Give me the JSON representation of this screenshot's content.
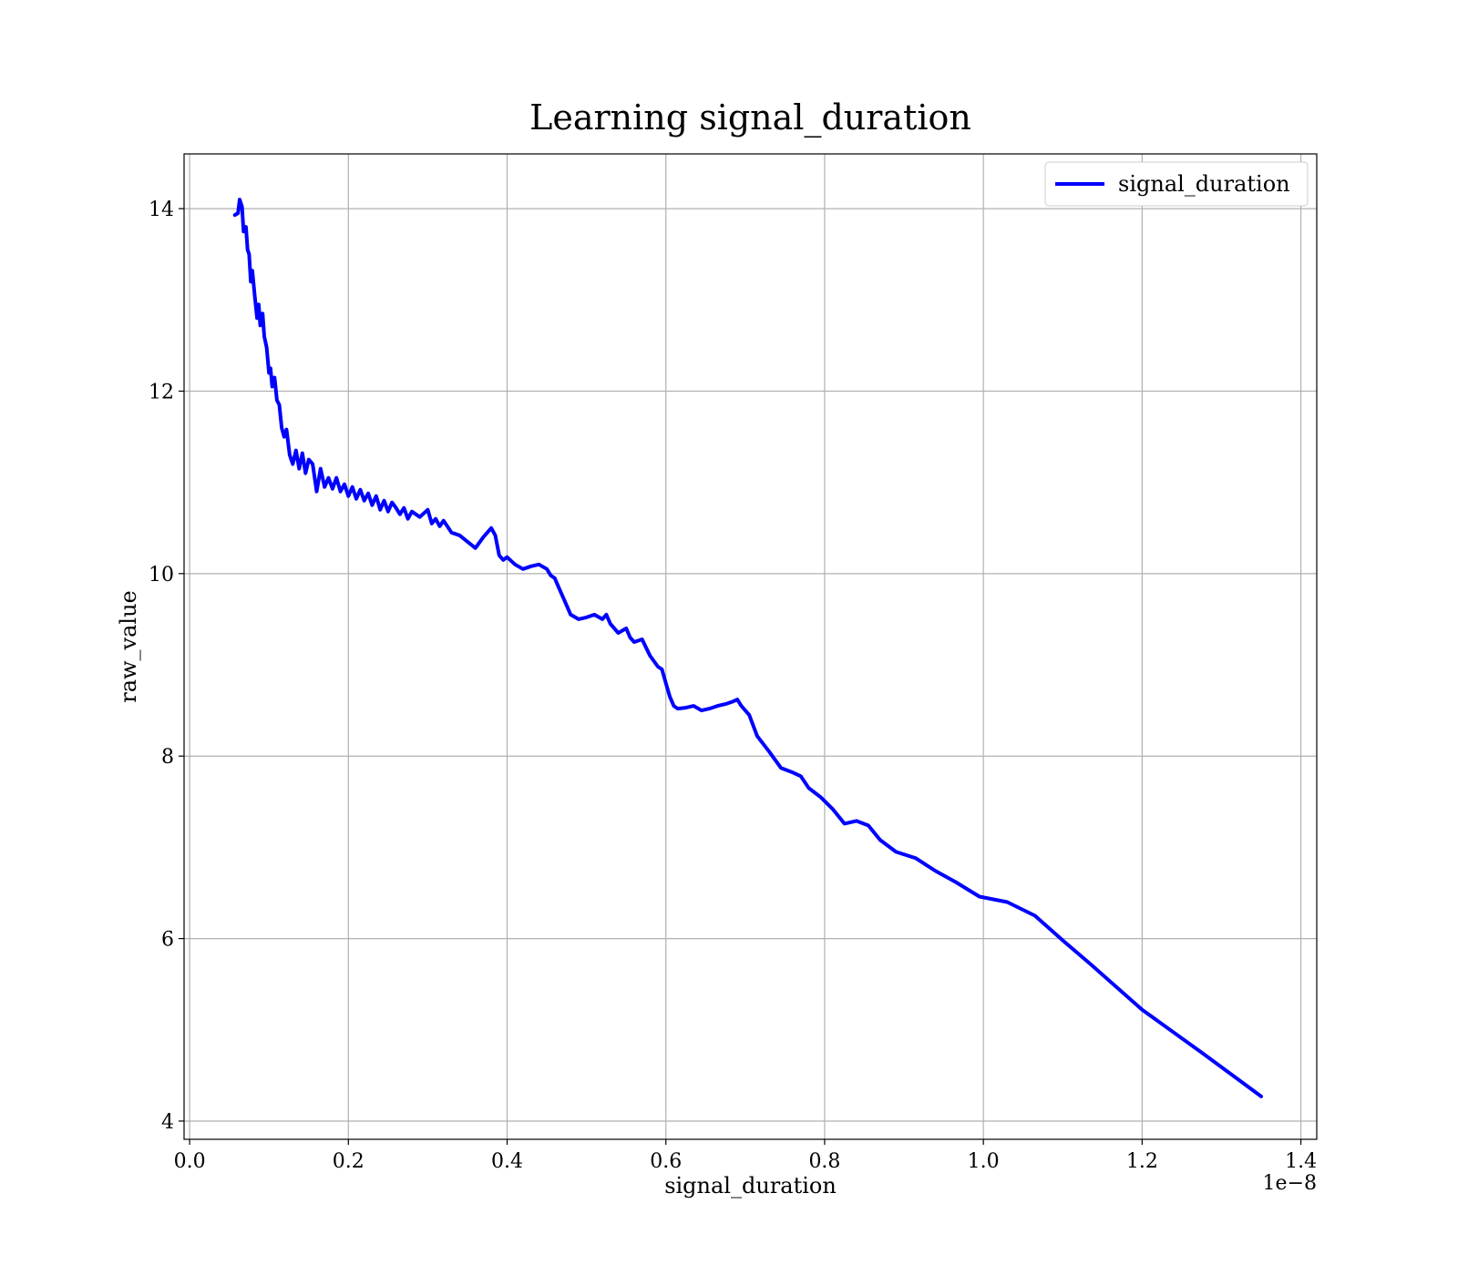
{
  "chart_data": {
    "type": "line",
    "title": "Learning signal_duration",
    "xlabel": "signal_duration",
    "ylabel": "raw_value",
    "x_offset_label": "1e−8",
    "xlim": [
      -0.007,
      1.42
    ],
    "ylim": [
      3.8,
      14.6
    ],
    "x_ticks": [
      0.0,
      0.2,
      0.4,
      0.6,
      0.8,
      1.0,
      1.2,
      1.4
    ],
    "x_tick_labels": [
      "0.0",
      "0.2",
      "0.4",
      "0.6",
      "0.8",
      "1.0",
      "1.2",
      "1.4"
    ],
    "y_ticks": [
      4,
      6,
      8,
      10,
      12,
      14
    ],
    "y_tick_labels": [
      "4",
      "6",
      "8",
      "10",
      "12",
      "14"
    ],
    "grid": true,
    "legend": {
      "position": "top-right",
      "entries": [
        "signal_duration"
      ]
    },
    "series": [
      {
        "name": "signal_duration",
        "color": "#0000ff",
        "points": [
          [
            0.057,
            13.93
          ],
          [
            0.061,
            13.95
          ],
          [
            0.063,
            14.1
          ],
          [
            0.066,
            14.02
          ],
          [
            0.068,
            13.75
          ],
          [
            0.071,
            13.8
          ],
          [
            0.073,
            13.55
          ],
          [
            0.075,
            13.5
          ],
          [
            0.077,
            13.2
          ],
          [
            0.079,
            13.32
          ],
          [
            0.082,
            13.05
          ],
          [
            0.085,
            12.8
          ],
          [
            0.087,
            12.95
          ],
          [
            0.089,
            12.72
          ],
          [
            0.092,
            12.85
          ],
          [
            0.094,
            12.6
          ],
          [
            0.097,
            12.48
          ],
          [
            0.1,
            12.2
          ],
          [
            0.102,
            12.25
          ],
          [
            0.104,
            12.05
          ],
          [
            0.107,
            12.15
          ],
          [
            0.11,
            11.9
          ],
          [
            0.113,
            11.85
          ],
          [
            0.116,
            11.6
          ],
          [
            0.119,
            11.5
          ],
          [
            0.122,
            11.58
          ],
          [
            0.126,
            11.3
          ],
          [
            0.13,
            11.2
          ],
          [
            0.134,
            11.35
          ],
          [
            0.138,
            11.15
          ],
          [
            0.142,
            11.32
          ],
          [
            0.146,
            11.1
          ],
          [
            0.15,
            11.25
          ],
          [
            0.155,
            11.2
          ],
          [
            0.16,
            10.9
          ],
          [
            0.165,
            11.15
          ],
          [
            0.17,
            10.95
          ],
          [
            0.175,
            11.05
          ],
          [
            0.18,
            10.93
          ],
          [
            0.185,
            11.05
          ],
          [
            0.19,
            10.9
          ],
          [
            0.195,
            10.98
          ],
          [
            0.2,
            10.85
          ],
          [
            0.205,
            10.95
          ],
          [
            0.21,
            10.82
          ],
          [
            0.215,
            10.92
          ],
          [
            0.22,
            10.8
          ],
          [
            0.225,
            10.88
          ],
          [
            0.23,
            10.75
          ],
          [
            0.235,
            10.85
          ],
          [
            0.24,
            10.7
          ],
          [
            0.245,
            10.8
          ],
          [
            0.25,
            10.68
          ],
          [
            0.255,
            10.78
          ],
          [
            0.26,
            10.72
          ],
          [
            0.265,
            10.65
          ],
          [
            0.27,
            10.72
          ],
          [
            0.275,
            10.6
          ],
          [
            0.28,
            10.68
          ],
          [
            0.29,
            10.62
          ],
          [
            0.3,
            10.7
          ],
          [
            0.305,
            10.55
          ],
          [
            0.31,
            10.6
          ],
          [
            0.315,
            10.52
          ],
          [
            0.32,
            10.58
          ],
          [
            0.33,
            10.45
          ],
          [
            0.34,
            10.42
          ],
          [
            0.35,
            10.35
          ],
          [
            0.36,
            10.28
          ],
          [
            0.37,
            10.4
          ],
          [
            0.38,
            10.5
          ],
          [
            0.385,
            10.42
          ],
          [
            0.39,
            10.2
          ],
          [
            0.395,
            10.15
          ],
          [
            0.4,
            10.18
          ],
          [
            0.41,
            10.1
          ],
          [
            0.42,
            10.05
          ],
          [
            0.43,
            10.08
          ],
          [
            0.44,
            10.1
          ],
          [
            0.45,
            10.05
          ],
          [
            0.455,
            9.98
          ],
          [
            0.46,
            9.95
          ],
          [
            0.465,
            9.85
          ],
          [
            0.47,
            9.75
          ],
          [
            0.475,
            9.65
          ],
          [
            0.48,
            9.55
          ],
          [
            0.49,
            9.5
          ],
          [
            0.5,
            9.52
          ],
          [
            0.51,
            9.55
          ],
          [
            0.52,
            9.5
          ],
          [
            0.525,
            9.55
          ],
          [
            0.53,
            9.45
          ],
          [
            0.54,
            9.35
          ],
          [
            0.55,
            9.4
          ],
          [
            0.555,
            9.3
          ],
          [
            0.56,
            9.25
          ],
          [
            0.57,
            9.28
          ],
          [
            0.58,
            9.1
          ],
          [
            0.59,
            8.98
          ],
          [
            0.595,
            8.95
          ],
          [
            0.6,
            8.8
          ],
          [
            0.605,
            8.65
          ],
          [
            0.61,
            8.55
          ],
          [
            0.615,
            8.52
          ],
          [
            0.625,
            8.53
          ],
          [
            0.635,
            8.55
          ],
          [
            0.645,
            8.5
          ],
          [
            0.655,
            8.52
          ],
          [
            0.665,
            8.55
          ],
          [
            0.675,
            8.57
          ],
          [
            0.685,
            8.6
          ],
          [
            0.69,
            8.62
          ],
          [
            0.695,
            8.55
          ],
          [
            0.705,
            8.45
          ],
          [
            0.715,
            8.22
          ],
          [
            0.73,
            8.05
          ],
          [
            0.745,
            7.87
          ],
          [
            0.76,
            7.82
          ],
          [
            0.77,
            7.78
          ],
          [
            0.78,
            7.65
          ],
          [
            0.795,
            7.55
          ],
          [
            0.81,
            7.42
          ],
          [
            0.825,
            7.26
          ],
          [
            0.84,
            7.29
          ],
          [
            0.855,
            7.24
          ],
          [
            0.87,
            7.08
          ],
          [
            0.89,
            6.95
          ],
          [
            0.915,
            6.88
          ],
          [
            0.94,
            6.74
          ],
          [
            0.965,
            6.62
          ],
          [
            0.995,
            6.46
          ],
          [
            1.03,
            6.4
          ],
          [
            1.065,
            6.25
          ],
          [
            1.1,
            5.98
          ],
          [
            1.135,
            5.72
          ],
          [
            1.2,
            5.22
          ],
          [
            1.275,
            4.75
          ],
          [
            1.35,
            4.27
          ]
        ]
      }
    ]
  }
}
